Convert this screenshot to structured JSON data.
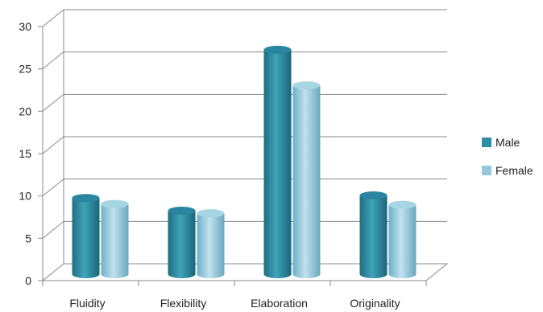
{
  "chart_data": {
    "type": "bar",
    "title": "",
    "xlabel": "",
    "ylabel": "",
    "categories": [
      "Fluidity",
      "Flexibility",
      "Elaboration",
      "Originality"
    ],
    "series": [
      {
        "name": "Male",
        "values": [
          9,
          7.5,
          26.5,
          9.3
        ],
        "color": "#2E8FA6"
      },
      {
        "name": "Female",
        "values": [
          8.3,
          7.2,
          22.3,
          8.2
        ],
        "color": "#93C9DB"
      }
    ],
    "ylim": [
      0,
      30
    ],
    "yticks": [
      0,
      5,
      10,
      15,
      20,
      25,
      30
    ],
    "grid": true,
    "legend": "right",
    "style": "3d-cylinder"
  }
}
